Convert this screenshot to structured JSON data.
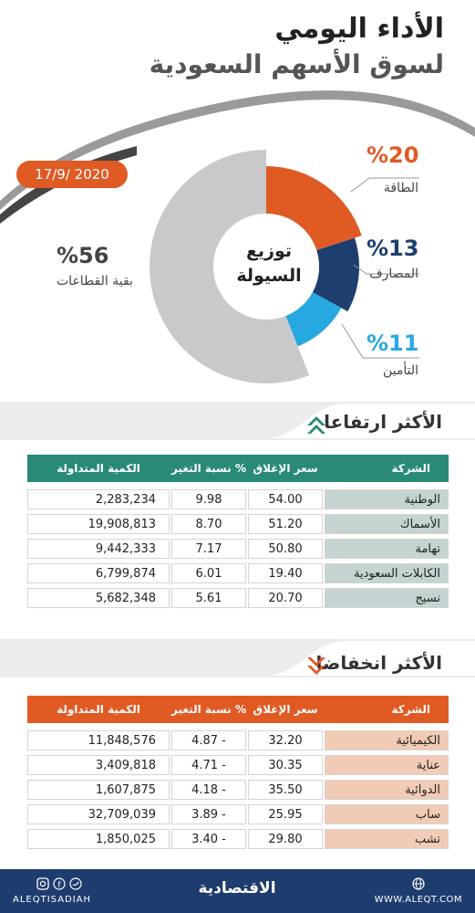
{
  "header": {
    "title_line1": "الأداء اليومي",
    "title_line2": "لسوق الأسهم السعودية",
    "date": "17/9/ 2020"
  },
  "donut": {
    "center_line1": "توزيع",
    "center_line2": "السيولة",
    "segments": [
      {
        "label": "الطاقة",
        "percent_text": "%20",
        "value": 20,
        "color": "#e05a24"
      },
      {
        "label": "المصارف",
        "percent_text": "%13",
        "value": 13,
        "color": "#1e3f6e"
      },
      {
        "label": "التأمين",
        "percent_text": "%11",
        "value": 11,
        "color": "#27a8e0"
      },
      {
        "label": "بقية القطاعات",
        "percent_text": "%56",
        "value": 56,
        "color": "#c9c9cb"
      }
    ]
  },
  "chart_data": [
    {
      "type": "pie",
      "title": "توزيع السيولة",
      "categories": [
        "الطاقة",
        "المصارف",
        "التأمين",
        "بقية القطاعات"
      ],
      "values": [
        20,
        13,
        11,
        56
      ]
    },
    {
      "type": "table",
      "title": "الأكثر ارتفاعا",
      "columns": [
        "الشركة",
        "سعر الإغلاق",
        "نسبة التغير %",
        "الكمية المتداولة"
      ],
      "rows": [
        [
          "الوطنية",
          "54.00",
          "9.98",
          "2,283,234"
        ],
        [
          "الأسماك",
          "51.20",
          "8.70",
          "19,908,813"
        ],
        [
          "تهامة",
          "50.80",
          "7.17",
          "9,442,333"
        ],
        [
          "الكابلات السعودية",
          "19.40",
          "6.01",
          "6,799,874"
        ],
        [
          "نسيج",
          "20.70",
          "5.61",
          "5,682,348"
        ]
      ]
    },
    {
      "type": "table",
      "title": "الأكثر انخفاضا",
      "columns": [
        "الشركة",
        "سعر الإغلاق",
        "نسبة التغير %",
        "الكمية المتداولة"
      ],
      "rows": [
        [
          "الكيميائية",
          "32.20",
          "4.87 -",
          "11,848,576"
        ],
        [
          "عناية",
          "30.35",
          "4.71 -",
          "3,409,818"
        ],
        [
          "الدوائية",
          "35.50",
          "4.18 -",
          "1,607,875"
        ],
        [
          "ساب",
          "25.95",
          "3.89 -",
          "32,709,039"
        ],
        [
          "تشب",
          "29.80",
          "3.40 -",
          "1,850,025"
        ]
      ]
    }
  ],
  "gainers": {
    "title": "الأكثر ارتفاعا",
    "header_color": "#2a8a78",
    "name_cell_color": "#c5d3d3",
    "columns": {
      "company": "الشركة",
      "close": "سعر الإغلاق",
      "change": "نسبة التغير %",
      "volume": "الكمية المتداولة"
    },
    "rows": [
      {
        "company": "الوطنية",
        "close": "54.00",
        "change": "9.98",
        "volume": "2,283,234"
      },
      {
        "company": "الأسماك",
        "close": "51.20",
        "change": "8.70",
        "volume": "19,908,813"
      },
      {
        "company": "تهامة",
        "close": "50.80",
        "change": "7.17",
        "volume": "9,442,333"
      },
      {
        "company": "الكابلات السعودية",
        "close": "19.40",
        "change": "6.01",
        "volume": "6,799,874"
      },
      {
        "company": "نسيج",
        "close": "20.70",
        "change": "5.61",
        "volume": "5,682,348"
      }
    ]
  },
  "losers": {
    "title": "الأكثر انخفاضا",
    "header_color": "#e05a24",
    "name_cell_color": "#f1cbb5",
    "columns": {
      "company": "الشركة",
      "close": "سعر الإغلاق",
      "change": "نسبة التغير %",
      "volume": "الكمية المتداولة"
    },
    "rows": [
      {
        "company": "الكيميائية",
        "close": "32.20",
        "change": "4.87 -",
        "volume": "11,848,576"
      },
      {
        "company": "عناية",
        "close": "30.35",
        "change": "4.71 -",
        "volume": "3,409,818"
      },
      {
        "company": "الدوائية",
        "close": "35.50",
        "change": "4.18 -",
        "volume": "1,607,875"
      },
      {
        "company": "ساب",
        "close": "25.95",
        "change": "3.89 -",
        "volume": "32,709,039"
      },
      {
        "company": "تشب",
        "close": "29.80",
        "change": "3.40 -",
        "volume": "1,850,025"
      }
    ]
  },
  "footer": {
    "handle": "ALEQTISADIAH",
    "logo": "الاقتصادية",
    "website": "WWW.ALEQT.COM",
    "icons": [
      "instagram-icon",
      "facebook-icon",
      "twitter-icon",
      "globe-icon"
    ]
  }
}
